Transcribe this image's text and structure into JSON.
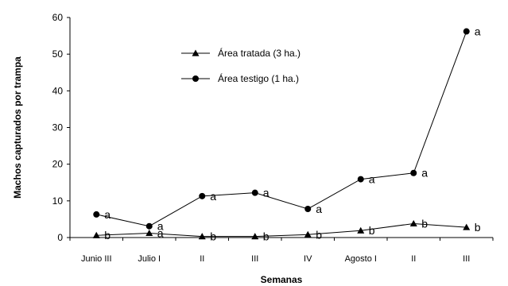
{
  "chart_data": {
    "type": "line",
    "xlabel": "Semanas",
    "ylabel": "Machos capturados por trampa",
    "ylim": [
      0,
      60
    ],
    "yticks": [
      0,
      10,
      20,
      30,
      40,
      50,
      60
    ],
    "grid": false,
    "legend_position": "top-center",
    "categories": [
      "Junio III",
      "Julio I",
      "II",
      "III",
      "IV",
      "Agosto I",
      "II",
      "III"
    ],
    "series": [
      {
        "name": "Área tratada (3 ha.)",
        "marker": "triangle",
        "values": [
          0.6,
          1.2,
          0.3,
          0.3,
          0.8,
          1.9,
          3.8,
          2.8
        ],
        "labels": [
          "b",
          "a",
          "b",
          "b",
          "b",
          "b",
          "b",
          "b"
        ]
      },
      {
        "name": "Área testigo (1 ha.)",
        "marker": "circle",
        "values": [
          6.3,
          3.1,
          11.3,
          12.2,
          7.8,
          15.9,
          17.6,
          56.2
        ],
        "labels": [
          "a",
          "a",
          "a",
          "a",
          "a",
          "a",
          "a",
          "a"
        ]
      }
    ]
  }
}
